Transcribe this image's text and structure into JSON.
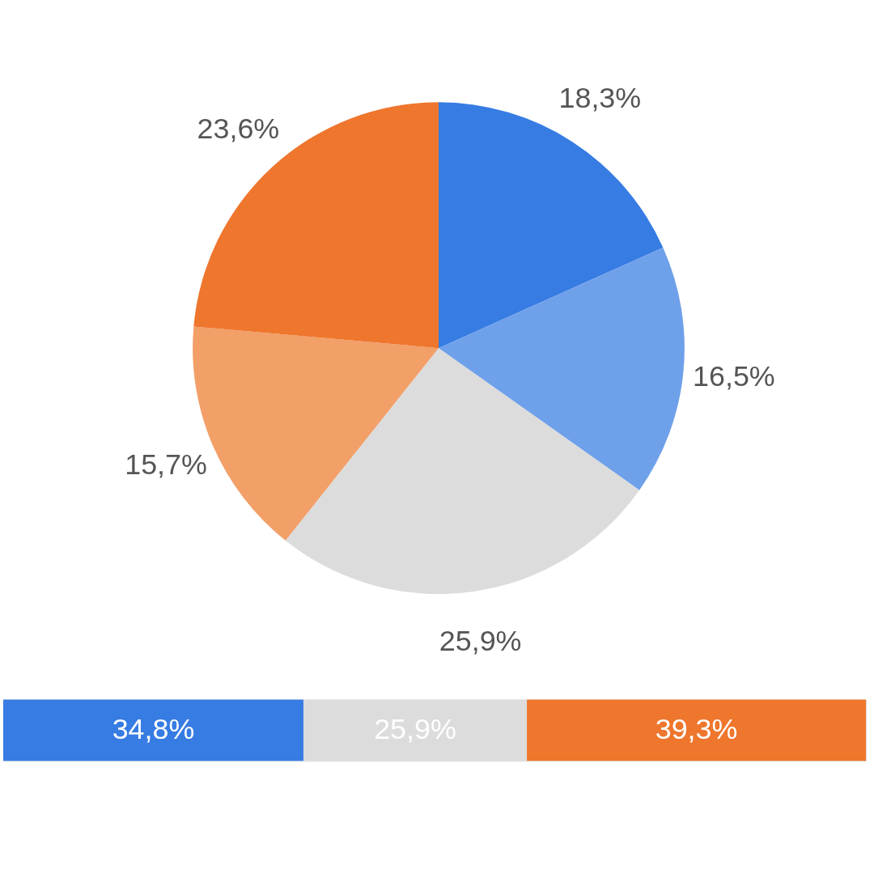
{
  "chart_data": [
    {
      "type": "pie",
      "categories": [
        null,
        null,
        null,
        null,
        null
      ],
      "values": [
        18.3,
        16.5,
        25.9,
        15.7,
        23.6
      ],
      "colors": [
        "#367ce3",
        "#6fa0ea",
        "#dcdcdc",
        "#f29f68",
        "#ee762d"
      ],
      "value_labels": [
        "18,3%",
        "16,5%",
        "25,9%",
        "15,7%",
        "23,6%"
      ]
    },
    {
      "type": "bar",
      "orientation": "horizontal",
      "stacked": true,
      "categories": [
        null
      ],
      "xlim": [
        0,
        100
      ],
      "tick_labels": false,
      "series": [
        {
          "color": "#367ce3",
          "values": [
            34.8
          ],
          "value_labels": [
            "34,8%"
          ]
        },
        {
          "color": "#dcdcdc",
          "values": [
            25.9
          ],
          "value_labels": [
            "25,9%"
          ]
        },
        {
          "color": "#ee762d",
          "values": [
            39.3
          ],
          "value_labels": [
            "39,3%"
          ]
        }
      ]
    }
  ]
}
